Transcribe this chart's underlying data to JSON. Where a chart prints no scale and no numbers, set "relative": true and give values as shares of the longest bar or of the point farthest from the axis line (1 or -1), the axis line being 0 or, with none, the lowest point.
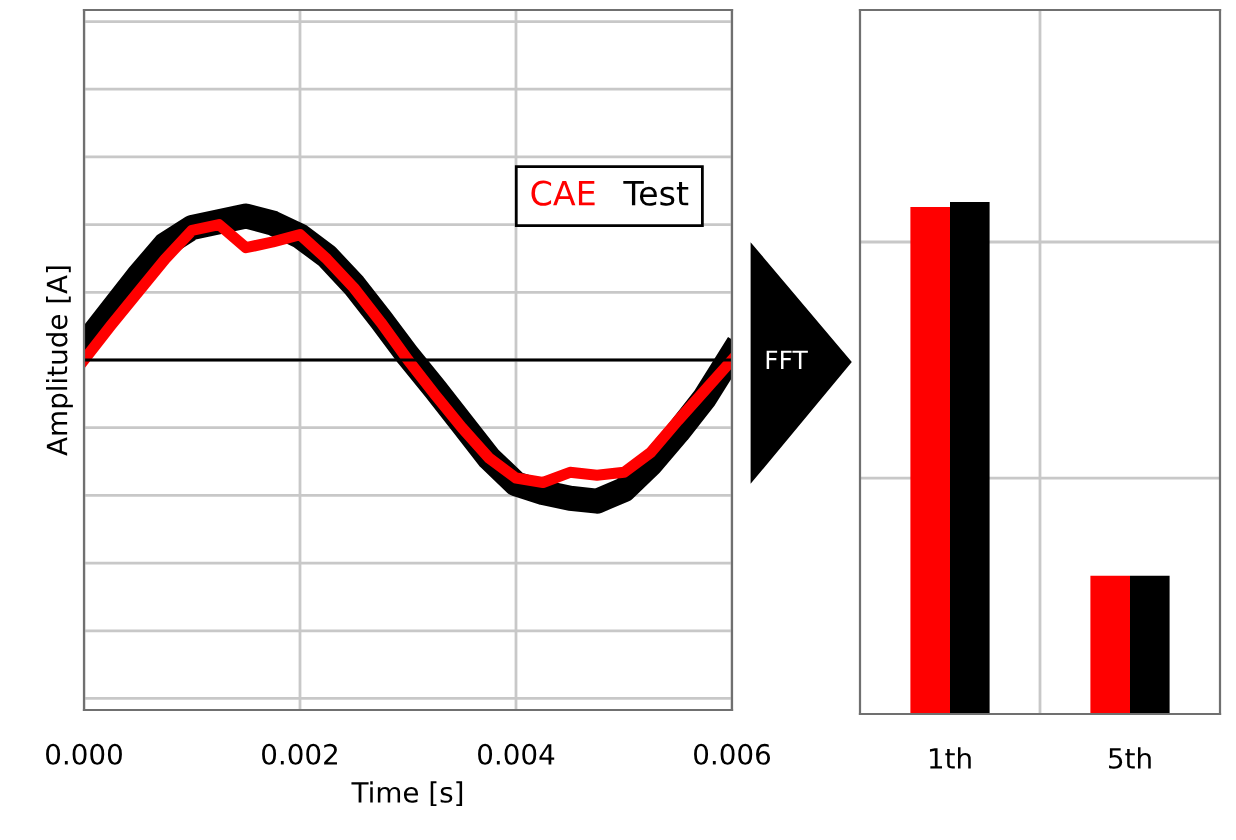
{
  "chart_data": [
    {
      "type": "line",
      "xlabel": "Time [s]",
      "ylabel": "Amplitude [A]",
      "relative": true,
      "xlim": [
        0,
        0.006
      ],
      "xticks": [
        {
          "value": 0,
          "label": "0.000"
        },
        {
          "value": 0.002,
          "label": "0.002"
        },
        {
          "value": 0.004,
          "label": "0.004"
        },
        {
          "value": 0.006,
          "label": "0.006"
        }
      ],
      "tick_labels": "x",
      "grid": true,
      "legend": "top right",
      "line_style": "solid",
      "marker": "none",
      "x": [
        0,
        0.00025,
        0.0005,
        0.00075,
        0.001,
        0.00125,
        0.0015,
        0.00175,
        0.002,
        0.00225,
        0.0025,
        0.00275,
        0.003,
        0.00325,
        0.0035,
        0.00375,
        0.004,
        0.00425,
        0.0045,
        0.00475,
        0.005,
        0.00525,
        0.0055,
        0.00575,
        0.006
      ],
      "series": [
        {
          "name": "Test",
          "color": "#000000",
          "values": [
            0.1,
            0.34,
            0.58,
            0.8,
            0.92,
            0.96,
            1,
            0.95,
            0.86,
            0.72,
            0.52,
            0.28,
            0.03,
            -0.2,
            -0.44,
            -0.68,
            -0.86,
            -0.92,
            -0.96,
            -0.98,
            -0.9,
            -0.72,
            -0.5,
            -0.26,
            0.04
          ]
        },
        {
          "name": "CAE",
          "color": "#ff0000",
          "values": [
            0,
            0.24,
            0.47,
            0.7,
            0.9,
            0.94,
            0.78,
            0.82,
            0.87,
            0.7,
            0.5,
            0.26,
            0,
            -0.24,
            -0.47,
            -0.68,
            -0.82,
            -0.85,
            -0.78,
            -0.8,
            -0.78,
            -0.64,
            -0.42,
            -0.21,
            0
          ]
        }
      ]
    },
    {
      "type": "bar",
      "relative": true,
      "categories": [
        "1th",
        "5th"
      ],
      "tick_labels": "x",
      "grid": true,
      "annotations": [
        "FFT"
      ],
      "series": [
        {
          "color": "#ff0000",
          "values": [
            0.99,
            0.27
          ]
        },
        {
          "color": "#000000",
          "values": [
            1,
            0.27
          ]
        }
      ]
    }
  ]
}
